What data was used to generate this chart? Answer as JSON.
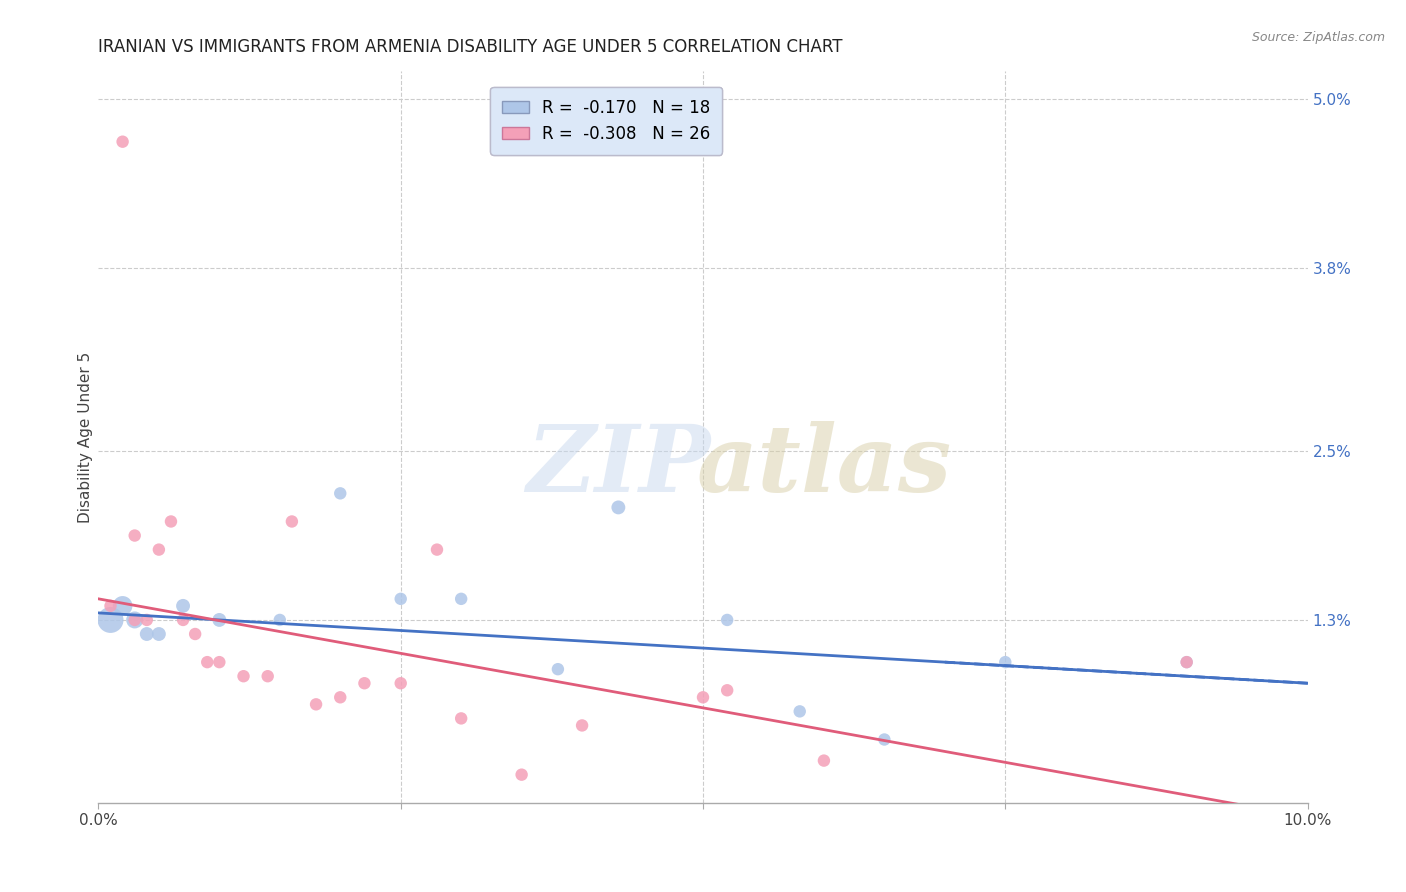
{
  "title": "IRANIAN VS IMMIGRANTS FROM ARMENIA DISABILITY AGE UNDER 5 CORRELATION CHART",
  "source": "Source: ZipAtlas.com",
  "ylabel": "Disability Age Under 5",
  "xlim": [
    0,
    0.1
  ],
  "ylim": [
    0,
    0.052
  ],
  "background_color": "#ffffff",
  "grid_color": "#cccccc",
  "iranians_color": "#aec6e8",
  "armenians_color": "#f4a0b8",
  "iranians_line_color": "#4472c4",
  "armenians_line_color": "#e05c7a",
  "legend_box_color": "#dce8f8",
  "r_iranians": -0.17,
  "n_iranians": 18,
  "r_armenians": -0.308,
  "n_armenians": 26,
  "iranians_x": [
    0.001,
    0.002,
    0.003,
    0.004,
    0.005,
    0.007,
    0.01,
    0.015,
    0.02,
    0.025,
    0.03,
    0.038,
    0.043,
    0.052,
    0.058,
    0.065,
    0.075,
    0.09
  ],
  "iranians_y": [
    0.013,
    0.014,
    0.013,
    0.012,
    0.012,
    0.014,
    0.013,
    0.013,
    0.022,
    0.0145,
    0.0145,
    0.0095,
    0.021,
    0.013,
    0.0065,
    0.0045,
    0.01,
    0.01
  ],
  "iranians_size": [
    350,
    200,
    150,
    100,
    100,
    100,
    100,
    80,
    80,
    80,
    80,
    80,
    100,
    80,
    80,
    80,
    80,
    80
  ],
  "armenians_x": [
    0.001,
    0.002,
    0.003,
    0.003,
    0.004,
    0.005,
    0.006,
    0.007,
    0.008,
    0.009,
    0.01,
    0.012,
    0.014,
    0.016,
    0.018,
    0.02,
    0.022,
    0.025,
    0.028,
    0.03,
    0.035,
    0.04,
    0.05,
    0.052,
    0.06,
    0.09
  ],
  "armenians_y": [
    0.014,
    0.047,
    0.013,
    0.019,
    0.013,
    0.018,
    0.02,
    0.013,
    0.012,
    0.01,
    0.01,
    0.009,
    0.009,
    0.02,
    0.007,
    0.0075,
    0.0085,
    0.0085,
    0.018,
    0.006,
    0.002,
    0.0055,
    0.0075,
    0.008,
    0.003,
    0.01
  ],
  "armenians_size": [
    80,
    80,
    80,
    80,
    80,
    80,
    80,
    80,
    80,
    80,
    80,
    80,
    80,
    80,
    80,
    80,
    80,
    80,
    80,
    80,
    80,
    80,
    80,
    80,
    80,
    80
  ],
  "iranians_line_x0": 0.0,
  "iranians_line_x1": 0.1,
  "iranians_line_y0": 0.0135,
  "iranians_line_y1": 0.0085,
  "armenians_line_x0": 0.0,
  "armenians_line_x1": 0.1,
  "armenians_line_y0": 0.0145,
  "armenians_line_y1": -0.001,
  "title_fontsize": 12,
  "axis_label_fontsize": 11,
  "tick_fontsize": 11,
  "legend_fontsize": 12,
  "source_fontsize": 9
}
